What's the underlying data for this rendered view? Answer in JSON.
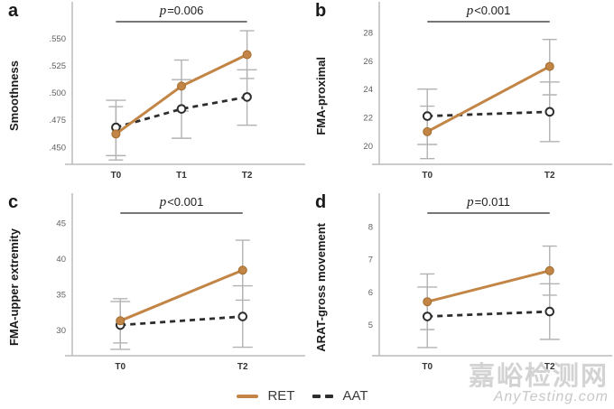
{
  "colors": {
    "ret_line": "#c28545",
    "ret_marker_edge": "#a06c2e",
    "aat_line": "#2d2d2d",
    "aat_marker_fill": "#ffffff",
    "error_bar": "#b2b2b2",
    "axis": "#bcbcbc",
    "sig_bar": "#4a4a4a",
    "tick_text": "#5f5f5f",
    "xtick_text": "#333333",
    "p_text": "#1f1f1f",
    "watermark": "#c8c8c8"
  },
  "legend": {
    "items": [
      {
        "label": "RET",
        "style": "solid-orange-line"
      },
      {
        "label": "AAT",
        "style": "dashed-dark-line"
      }
    ]
  },
  "watermark": {
    "line1": "嘉峪检测网",
    "line2": "AnyTesting.com"
  },
  "chart_data": [
    {
      "type": "line",
      "panel_label": "a",
      "ylabel": "Smoothness",
      "p_label": {
        "symbol": "p",
        "rest": "=0.006"
      },
      "categories": [
        "T0",
        "T1",
        "T2"
      ],
      "yticks": [
        {
          "label": ".450",
          "value": 0.45
        },
        {
          "label": ".475",
          "value": 0.475
        },
        {
          "label": ".500",
          "value": 0.5
        },
        {
          "label": ".525",
          "value": 0.525
        },
        {
          "label": ".550",
          "value": 0.55
        }
      ],
      "ylim": [
        0.434,
        0.562
      ],
      "grid": false,
      "series": [
        {
          "name": "RET",
          "values": [
            0.462,
            0.506,
            0.535
          ],
          "err_low": [
            0.438,
            0.483,
            0.513
          ],
          "err_high": [
            0.487,
            0.53,
            0.557
          ]
        },
        {
          "name": "AAT",
          "values": [
            0.468,
            0.485,
            0.496
          ],
          "err_low": [
            0.442,
            0.458,
            0.47
          ],
          "err_high": [
            0.493,
            0.512,
            0.521
          ]
        }
      ]
    },
    {
      "type": "line",
      "panel_label": "b",
      "ylabel": "FMA-proximal",
      "p_label": {
        "symbol": "p",
        "rest": "<0.001"
      },
      "categories": [
        "T0",
        "T2"
      ],
      "yticks": [
        {
          "label": "20",
          "value": 20
        },
        {
          "label": "22",
          "value": 22
        },
        {
          "label": "24",
          "value": 24
        },
        {
          "label": "26",
          "value": 26
        },
        {
          "label": "28",
          "value": 28
        }
      ],
      "ylim": [
        18.7,
        28.5
      ],
      "grid": false,
      "series": [
        {
          "name": "RET",
          "values": [
            21.0,
            25.6
          ],
          "err_low": [
            19.1,
            23.6
          ],
          "err_high": [
            22.8,
            27.5
          ]
        },
        {
          "name": "AAT",
          "values": [
            22.1,
            22.4
          ],
          "err_low": [
            20.1,
            20.3
          ],
          "err_high": [
            24.0,
            24.5
          ]
        }
      ]
    },
    {
      "type": "line",
      "panel_label": "c",
      "ylabel": "FMA-upper extremity",
      "p_label": {
        "symbol": "p",
        "rest": "<0.001"
      },
      "categories": [
        "T0",
        "T2"
      ],
      "yticks": [
        {
          "label": "30",
          "value": 30
        },
        {
          "label": "35",
          "value": 35
        },
        {
          "label": "40",
          "value": 40
        },
        {
          "label": "45",
          "value": 45
        }
      ],
      "ylim": [
        26.4,
        45.9
      ],
      "grid": false,
      "series": [
        {
          "name": "RET",
          "values": [
            31.3,
            38.4
          ],
          "err_low": [
            28.2,
            34.2
          ],
          "err_high": [
            34.4,
            42.6
          ]
        },
        {
          "name": "AAT",
          "values": [
            30.7,
            31.9
          ],
          "err_low": [
            27.3,
            27.6
          ],
          "err_high": [
            34.0,
            36.2
          ]
        }
      ]
    },
    {
      "type": "line",
      "panel_label": "d",
      "ylabel": "ARAT-gross movement",
      "p_label": {
        "symbol": "p",
        "rest": "=0.011"
      },
      "categories": [
        "T0",
        "T2"
      ],
      "yticks": [
        {
          "label": "5",
          "value": 5
        },
        {
          "label": "6",
          "value": 6
        },
        {
          "label": "7",
          "value": 7
        },
        {
          "label": "8",
          "value": 8
        }
      ],
      "ylim": [
        4.05,
        8.3
      ],
      "grid": false,
      "series": [
        {
          "name": "RET",
          "values": [
            5.7,
            6.65
          ],
          "err_low": [
            4.85,
            5.9
          ],
          "err_high": [
            6.55,
            7.4
          ]
        },
        {
          "name": "AAT",
          "values": [
            5.25,
            5.4
          ],
          "err_low": [
            4.3,
            4.55
          ],
          "err_high": [
            6.15,
            6.25
          ]
        }
      ]
    }
  ]
}
